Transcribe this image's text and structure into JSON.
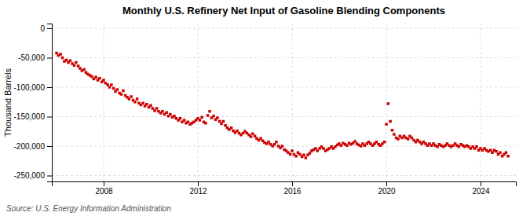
{
  "chart_data": {
    "type": "scatter",
    "title": "Monthly U.S. Refinery Net Input of Gasoline Blending Components",
    "ylabel": "Thousand Barrels",
    "source": "Source: U.S. Energy Information Administration",
    "color": "#cc0000",
    "marker": "square",
    "grid": true,
    "xlim": [
      2005.8,
      2025.5
    ],
    "xticks": [
      2008,
      2012,
      2016,
      2020,
      2024
    ],
    "ylim": [
      -260000,
      8000
    ],
    "yticks": [
      0,
      {
        "value": -50000,
        "label": "-50,000"
      },
      {
        "value": -100000,
        "label": "-100,000"
      },
      {
        "value": -150000,
        "label": "-150,000"
      },
      {
        "value": -200000,
        "label": "-200,000"
      },
      {
        "value": -250000,
        "label": "-250,000"
      }
    ],
    "x": [
      2006.0,
      2006.08,
      2006.17,
      2006.25,
      2006.33,
      2006.42,
      2006.5,
      2006.58,
      2006.67,
      2006.75,
      2006.83,
      2006.92,
      2007.0,
      2007.08,
      2007.17,
      2007.25,
      2007.33,
      2007.42,
      2007.5,
      2007.58,
      2007.67,
      2007.75,
      2007.83,
      2007.92,
      2008.0,
      2008.08,
      2008.17,
      2008.25,
      2008.33,
      2008.42,
      2008.5,
      2008.58,
      2008.67,
      2008.75,
      2008.83,
      2008.92,
      2009.0,
      2009.08,
      2009.17,
      2009.25,
      2009.33,
      2009.42,
      2009.5,
      2009.58,
      2009.67,
      2009.75,
      2009.83,
      2009.92,
      2010.0,
      2010.08,
      2010.17,
      2010.25,
      2010.33,
      2010.42,
      2010.5,
      2010.58,
      2010.67,
      2010.75,
      2010.83,
      2010.92,
      2011.0,
      2011.08,
      2011.17,
      2011.25,
      2011.33,
      2011.42,
      2011.5,
      2011.58,
      2011.67,
      2011.75,
      2011.83,
      2011.92,
      2012.0,
      2012.08,
      2012.17,
      2012.25,
      2012.33,
      2012.42,
      2012.5,
      2012.58,
      2012.67,
      2012.75,
      2012.83,
      2012.92,
      2013.0,
      2013.08,
      2013.17,
      2013.25,
      2013.33,
      2013.42,
      2013.5,
      2013.58,
      2013.67,
      2013.75,
      2013.83,
      2013.92,
      2014.0,
      2014.08,
      2014.17,
      2014.25,
      2014.33,
      2014.42,
      2014.5,
      2014.58,
      2014.67,
      2014.75,
      2014.83,
      2014.92,
      2015.0,
      2015.08,
      2015.17,
      2015.25,
      2015.33,
      2015.42,
      2015.5,
      2015.58,
      2015.67,
      2015.75,
      2015.83,
      2015.92,
      2016.0,
      2016.08,
      2016.17,
      2016.25,
      2016.33,
      2016.42,
      2016.5,
      2016.58,
      2016.67,
      2016.75,
      2016.83,
      2016.92,
      2017.0,
      2017.08,
      2017.17,
      2017.25,
      2017.33,
      2017.42,
      2017.5,
      2017.58,
      2017.67,
      2017.75,
      2017.83,
      2017.92,
      2018.0,
      2018.08,
      2018.17,
      2018.25,
      2018.33,
      2018.42,
      2018.5,
      2018.58,
      2018.67,
      2018.75,
      2018.83,
      2018.92,
      2019.0,
      2019.08,
      2019.17,
      2019.25,
      2019.33,
      2019.42,
      2019.5,
      2019.58,
      2019.67,
      2019.75,
      2019.83,
      2019.92,
      2020.0,
      2020.08,
      2020.17,
      2020.25,
      2020.33,
      2020.42,
      2020.5,
      2020.58,
      2020.67,
      2020.75,
      2020.83,
      2020.92,
      2021.0,
      2021.08,
      2021.17,
      2021.25,
      2021.33,
      2021.42,
      2021.5,
      2021.58,
      2021.67,
      2021.75,
      2021.83,
      2021.92,
      2022.0,
      2022.08,
      2022.17,
      2022.25,
      2022.33,
      2022.42,
      2022.5,
      2022.58,
      2022.67,
      2022.75,
      2022.83,
      2022.92,
      2023.0,
      2023.08,
      2023.17,
      2023.25,
      2023.33,
      2023.42,
      2023.5,
      2023.58,
      2023.67,
      2023.75,
      2023.83,
      2023.92,
      2024.0,
      2024.08,
      2024.17,
      2024.25,
      2024.33,
      2024.42,
      2024.5,
      2024.58,
      2024.67,
      2024.75,
      2024.83,
      2024.92,
      2025.0,
      2025.08,
      2025.17
    ],
    "values": [
      -42000,
      -46000,
      -44000,
      -50000,
      -56000,
      -54000,
      -58000,
      -55000,
      -60000,
      -63000,
      -58000,
      -64000,
      -68000,
      -72000,
      -70000,
      -75000,
      -78000,
      -80000,
      -82000,
      -86000,
      -83000,
      -88000,
      -85000,
      -91000,
      -88000,
      -93000,
      -96000,
      -100000,
      -96000,
      -102000,
      -107000,
      -104000,
      -110000,
      -112000,
      -106000,
      -114000,
      -117000,
      -120000,
      -116000,
      -122000,
      -125000,
      -120000,
      -127000,
      -130000,
      -127000,
      -132000,
      -129000,
      -134000,
      -131000,
      -136000,
      -140000,
      -136000,
      -141000,
      -144000,
      -141000,
      -146000,
      -143000,
      -149000,
      -146000,
      -151000,
      -149000,
      -153000,
      -156000,
      -153000,
      -159000,
      -156000,
      -161000,
      -159000,
      -163000,
      -161000,
      -159000,
      -156000,
      -153000,
      -156000,
      -151000,
      -159000,
      -161000,
      -148000,
      -141000,
      -152000,
      -149000,
      -155000,
      -152000,
      -158000,
      -162000,
      -158000,
      -165000,
      -169000,
      -172000,
      -169000,
      -174000,
      -177000,
      -174000,
      -178000,
      -181000,
      -178000,
      -175000,
      -178000,
      -181000,
      -184000,
      -179000,
      -183000,
      -187000,
      -190000,
      -187000,
      -191000,
      -194000,
      -196000,
      -193000,
      -197000,
      -200000,
      -197000,
      -193000,
      -200000,
      -203000,
      -200000,
      -206000,
      -208000,
      -211000,
      -214000,
      -208000,
      -214000,
      -217000,
      -211000,
      -214000,
      -218000,
      -215000,
      -220000,
      -215000,
      -212000,
      -208000,
      -206000,
      -204000,
      -208000,
      -204000,
      -201000,
      -204000,
      -208000,
      -206000,
      -204000,
      -201000,
      -204000,
      -201000,
      -198000,
      -196000,
      -199000,
      -195000,
      -197000,
      -199000,
      -195000,
      -197000,
      -195000,
      -192000,
      -196000,
      -198000,
      -200000,
      -196000,
      -199000,
      -196000,
      -193000,
      -196000,
      -199000,
      -196000,
      -193000,
      -197000,
      -199000,
      -196000,
      -193000,
      -163000,
      -128000,
      -158000,
      -173000,
      -180000,
      -186000,
      -188000,
      -183000,
      -186000,
      -183000,
      -186000,
      -188000,
      -183000,
      -186000,
      -190000,
      -193000,
      -190000,
      -193000,
      -196000,
      -193000,
      -196000,
      -199000,
      -196000,
      -199000,
      -196000,
      -199000,
      -201000,
      -197000,
      -199000,
      -201000,
      -199000,
      -196000,
      -199000,
      -201000,
      -199000,
      -196000,
      -199000,
      -201000,
      -197000,
      -199000,
      -201000,
      -199000,
      -201000,
      -204000,
      -201000,
      -204000,
      -201000,
      -207000,
      -204000,
      -207000,
      -204000,
      -207000,
      -209000,
      -207000,
      -211000,
      -207000,
      -209000,
      -214000,
      -211000,
      -217000,
      -214000,
      -211000,
      -217000
    ]
  }
}
